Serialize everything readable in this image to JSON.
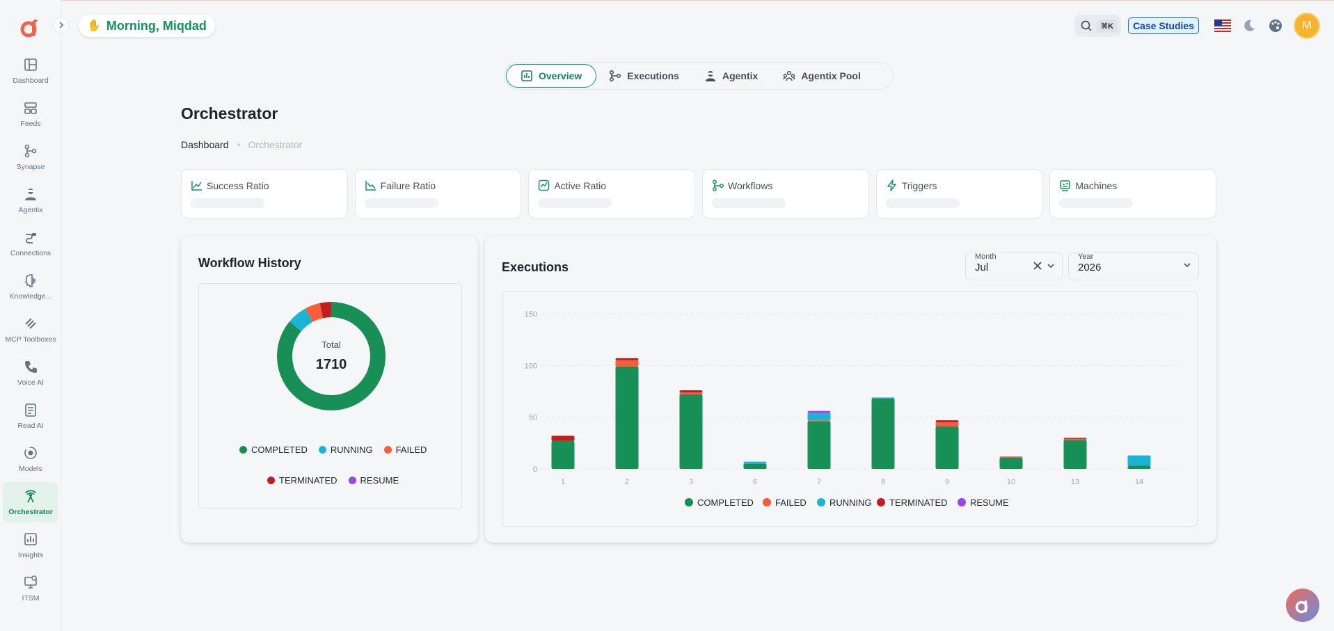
{
  "header": {
    "greeting": "Morning, Miqdad",
    "search_shortcut": "⌘K",
    "case_studies": "Case Studies",
    "avatar_initial": "M"
  },
  "sidebar": {
    "items": [
      {
        "label": "Dashboard",
        "icon": "dashboard-icon"
      },
      {
        "label": "Feeds",
        "icon": "feeds-icon"
      },
      {
        "label": "Synapse",
        "icon": "synapse-icon"
      },
      {
        "label": "Agentix",
        "icon": "agentix-icon"
      },
      {
        "label": "Connections",
        "icon": "connections-icon"
      },
      {
        "label": "Knowledge...",
        "icon": "knowledge-icon"
      },
      {
        "label": "MCP Toolboxes",
        "icon": "mcp-icon"
      },
      {
        "label": "Voice AI",
        "icon": "voice-icon"
      },
      {
        "label": "Read AI",
        "icon": "read-icon"
      },
      {
        "label": "Models",
        "icon": "models-icon"
      },
      {
        "label": "Orchestrator",
        "icon": "orchestrator-icon"
      },
      {
        "label": "Insights",
        "icon": "insights-icon"
      },
      {
        "label": "ITSM",
        "icon": "itsm-icon"
      }
    ],
    "active": "Orchestrator"
  },
  "tabs": [
    {
      "label": "Overview",
      "icon": "chart-icon",
      "active": true
    },
    {
      "label": "Executions",
      "icon": "flow-icon",
      "active": false
    },
    {
      "label": "Agentix",
      "icon": "agent-icon",
      "active": false
    },
    {
      "label": "Agentix Pool",
      "icon": "pool-icon",
      "active": false
    }
  ],
  "page": {
    "title": "Orchestrator",
    "breadcrumb": [
      "Dashboard",
      "Orchestrator"
    ]
  },
  "stats": [
    {
      "label": "Success Ratio",
      "icon": "trend-up-icon"
    },
    {
      "label": "Failure Ratio",
      "icon": "trend-down-icon"
    },
    {
      "label": "Active Ratio",
      "icon": "active-chart-icon"
    },
    {
      "label": "Workflows",
      "icon": "workflow-icon"
    },
    {
      "label": "Triggers",
      "icon": "lightning-icon"
    },
    {
      "label": "Machines",
      "icon": "machine-icon"
    }
  ],
  "colors": {
    "completed": "#178f56",
    "running": "#1bb3d6",
    "failed": "#fb5c3c",
    "terminated": "#bf1f1f",
    "resume": "#9747ea",
    "other": "#8a9ba8"
  },
  "workflow_history": {
    "title": "Workflow History",
    "total_label": "Total",
    "total_value": "1710",
    "legend": [
      "COMPLETED",
      "RUNNING",
      "FAILED",
      "TERMINATED",
      "RESUME"
    ]
  },
  "executions": {
    "title": "Executions",
    "month_label": "Month",
    "month_value": "Jul",
    "year_label": "Year",
    "year_value": "2026"
  },
  "chart_data": [
    {
      "type": "pie",
      "title": "Workflow History",
      "categories": [
        "COMPLETED",
        "RUNNING",
        "FAILED",
        "TERMINATED",
        "RESUME"
      ],
      "values": [
        1471,
        103,
        77,
        59,
        0
      ]
    },
    {
      "type": "bar",
      "title": "Executions",
      "stacked": true,
      "categories": [
        "1",
        "2",
        "3",
        "6",
        "7",
        "8",
        "9",
        "10",
        "13",
        "14"
      ],
      "ylim": [
        0,
        150
      ],
      "yticks": [
        0,
        50,
        100,
        150
      ],
      "series": [
        {
          "name": "COMPLETED",
          "values": [
            27,
            99,
            72,
            5,
            46,
            68,
            41,
            11,
            28,
            3
          ]
        },
        {
          "name": "FAILED",
          "values": [
            0,
            6,
            2,
            0,
            1,
            0,
            4,
            1,
            1,
            0
          ]
        },
        {
          "name": "RUNNING",
          "values": [
            0,
            0,
            0,
            2,
            7,
            1,
            0,
            0,
            0,
            10
          ]
        },
        {
          "name": "TERMINATED",
          "values": [
            5,
            2,
            2,
            0,
            0,
            0,
            2,
            0,
            1,
            0
          ]
        },
        {
          "name": "RESUME",
          "values": [
            0,
            0,
            0,
            0,
            2,
            0,
            0,
            0,
            0,
            0
          ]
        }
      ],
      "grid": true,
      "legend_placement": "bottom"
    }
  ]
}
